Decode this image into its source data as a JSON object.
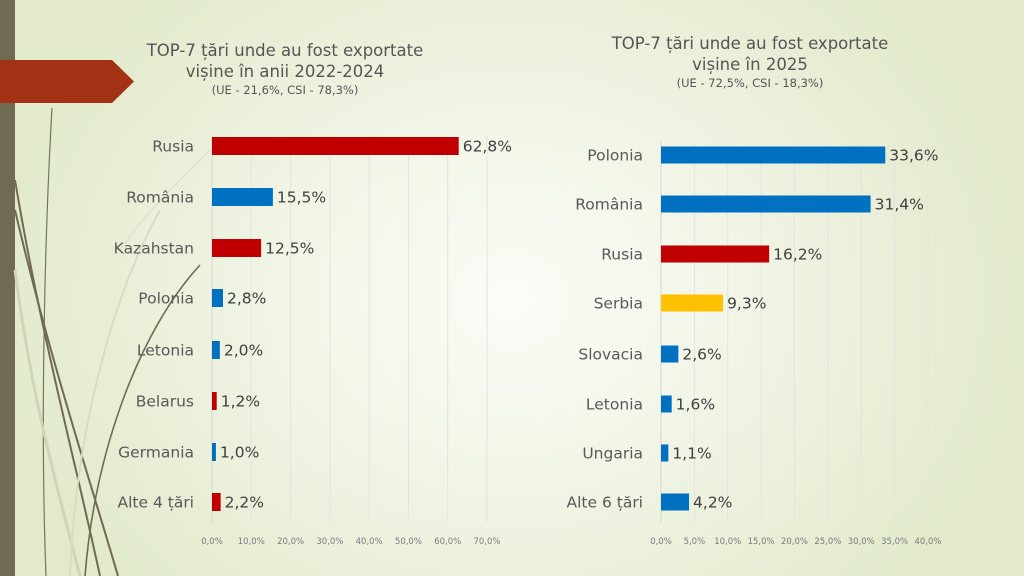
{
  "colors": {
    "ue": "#0070c0",
    "csi": "#c00000",
    "other": "#ffc000",
    "sidebar": "#6f6a51",
    "accent_arrow": "#a33214"
  },
  "chart_data": [
    {
      "type": "bar",
      "orientation": "horizontal",
      "title_line1": "TOP-7 țări unde au fost exportate",
      "title_line2": "vișine în anii 2022-2024",
      "subtitle": "(UE - 21,6%, CSI - 78,3%)",
      "categories": [
        "Rusia",
        "România",
        "Kazahstan",
        "Polonia",
        "Letonia",
        "Belarus",
        "Germania",
        "Alte 4 țări"
      ],
      "values": [
        62.8,
        15.5,
        12.5,
        2.8,
        2.0,
        1.2,
        1.0,
        2.2
      ],
      "labels": [
        "62,8%",
        "15,5%",
        "12,5%",
        "2,8%",
        "2,0%",
        "1,2%",
        "1,0%",
        "2,2%"
      ],
      "bar_groups": [
        "csi",
        "ue",
        "csi",
        "ue",
        "ue",
        "csi",
        "ue",
        "csi"
      ],
      "xlim": [
        0,
        70
      ],
      "xticks": [
        0,
        10,
        20,
        30,
        40,
        50,
        60,
        70
      ],
      "xtick_labels": [
        "0,0%",
        "10,0%",
        "20,0%",
        "30,0%",
        "40,0%",
        "50,0%",
        "60,0%",
        "70,0%"
      ],
      "xlabel": "",
      "ylabel": "",
      "grid": true,
      "legend": "none"
    },
    {
      "type": "bar",
      "orientation": "horizontal",
      "title_line1": "TOP-7 țări unde au fost exportate",
      "title_line2": "vișine în 2025",
      "subtitle": "(UE - 72,5%, CSI - 18,3%)",
      "categories": [
        "Polonia",
        "România",
        "Rusia",
        "Serbia",
        "Slovacia",
        "Letonia",
        "Ungaria",
        "Alte 6 țări"
      ],
      "values": [
        33.6,
        31.4,
        16.2,
        9.3,
        2.6,
        1.6,
        1.1,
        4.2
      ],
      "labels": [
        "33,6%",
        "31,4%",
        "16,2%",
        "9,3%",
        "2,6%",
        "1,6%",
        "1,1%",
        "4,2%"
      ],
      "bar_groups": [
        "ue",
        "ue",
        "csi",
        "other",
        "ue",
        "ue",
        "ue",
        "ue"
      ],
      "xlim": [
        0,
        40
      ],
      "xticks": [
        0,
        5,
        10,
        15,
        20,
        25,
        30,
        35,
        40
      ],
      "xtick_labels": [
        "0,0%",
        "5,0%",
        "10,0%",
        "15,0%",
        "20,0%",
        "25,0%",
        "30,0%",
        "35,0%",
        "40,0%"
      ],
      "xlabel": "",
      "ylabel": "",
      "grid": true,
      "legend": "none"
    }
  ]
}
